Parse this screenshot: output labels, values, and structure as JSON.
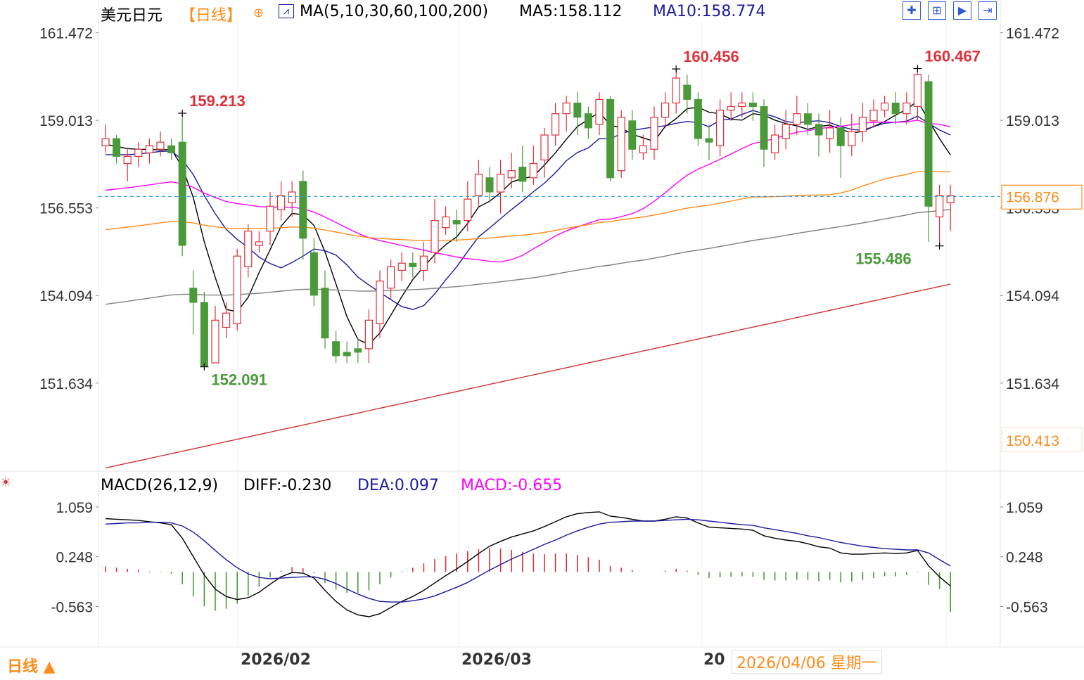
{
  "header": {
    "symbol": "美元日元",
    "period_tag": "【日线】",
    "ma_label": "MA(5,10,30,60,100,200)",
    "ma5_label": "MA5:158.112",
    "ma10_label": "MA10:158.774",
    "macd_label": "MACD(26,12,9)",
    "diff_label": "DIFF:-0.230",
    "dea_label": "DEA:0.097",
    "macd_value_label": "MACD:-0.655"
  },
  "footer": {
    "period_button": "日线 ▲",
    "dates": [
      "2026/02",
      "2026/03",
      "20"
    ],
    "crosshair_date": "2026/04/06 星期一"
  },
  "colors": {
    "up": "#e0303a",
    "down": "#4a9a3a",
    "ma5": "#000000",
    "ma10": "#1a1aa0",
    "ma30": "#ff00ff",
    "ma60": "#ff8c1a",
    "ma100": "#808080",
    "ma200": "#d03030",
    "accent": "#ff8c1a",
    "current_line": "#2a9adf"
  },
  "chart_data": [
    {
      "type": "candlestick",
      "title": "美元日元 日线",
      "ylim": [
        149.2,
        161.8
      ],
      "yticks": [
        "161.472",
        "159.013",
        "156.553",
        "154.094",
        "151.634"
      ],
      "current_price": "156.876",
      "ma200_label": "150.413",
      "annotations": [
        {
          "text": "159.213",
          "kind": "high"
        },
        {
          "text": "152.091",
          "kind": "low"
        },
        {
          "text": "160.456",
          "kind": "high"
        },
        {
          "text": "160.467",
          "kind": "high"
        },
        {
          "text": "155.486",
          "kind": "low"
        }
      ],
      "candles": [
        [
          158.3,
          158.5,
          158.1,
          158.9
        ],
        [
          158.5,
          158.0,
          157.8,
          158.6
        ],
        [
          157.8,
          158.0,
          157.3,
          158.2
        ],
        [
          158.0,
          158.2,
          157.7,
          158.4
        ],
        [
          158.1,
          158.3,
          157.8,
          158.5
        ],
        [
          158.2,
          158.4,
          158.0,
          158.7
        ],
        [
          158.3,
          158.1,
          157.9,
          158.5
        ],
        [
          158.4,
          155.5,
          155.2,
          159.213
        ],
        [
          154.3,
          153.9,
          153.0,
          154.8
        ],
        [
          153.9,
          152.1,
          152.091,
          154.2
        ],
        [
          152.2,
          153.4,
          152.2,
          153.8
        ],
        [
          153.2,
          153.6,
          152.9,
          153.9
        ],
        [
          153.3,
          155.2,
          153.1,
          155.4
        ],
        [
          154.9,
          155.9,
          154.6,
          156.1
        ],
        [
          155.5,
          155.6,
          155.3,
          155.9
        ],
        [
          155.9,
          156.6,
          155.5,
          157.0
        ],
        [
          156.5,
          156.9,
          156.2,
          157.3
        ],
        [
          156.7,
          157.0,
          156.3,
          157.3
        ],
        [
          157.3,
          155.7,
          155.1,
          157.6
        ],
        [
          155.3,
          154.1,
          153.8,
          155.7
        ],
        [
          154.3,
          152.9,
          152.6,
          154.8
        ],
        [
          152.8,
          152.4,
          152.2,
          153.1
        ],
        [
          152.5,
          152.4,
          152.2,
          152.8
        ],
        [
          152.6,
          152.5,
          152.2,
          152.9
        ],
        [
          152.6,
          153.4,
          152.2,
          153.7
        ],
        [
          153.3,
          154.5,
          152.9,
          154.8
        ],
        [
          154.3,
          154.9,
          154.0,
          155.1
        ],
        [
          154.8,
          155.0,
          154.5,
          155.3
        ],
        [
          155.0,
          154.9,
          154.6,
          155.3
        ],
        [
          154.8,
          155.2,
          154.5,
          155.6
        ],
        [
          155.3,
          156.2,
          155.0,
          156.8
        ],
        [
          156.0,
          156.3,
          155.8,
          156.6
        ],
        [
          156.2,
          156.1,
          155.6,
          156.5
        ],
        [
          156.2,
          156.8,
          155.9,
          157.3
        ],
        [
          156.9,
          157.5,
          156.6,
          157.9
        ],
        [
          157.4,
          157.0,
          156.7,
          157.7
        ],
        [
          157.0,
          157.5,
          156.4,
          157.9
        ],
        [
          157.4,
          157.6,
          157.1,
          158.1
        ],
        [
          157.7,
          157.3,
          157.0,
          158.3
        ],
        [
          157.4,
          157.8,
          157.2,
          158.3
        ],
        [
          157.9,
          158.6,
          157.4,
          158.8
        ],
        [
          158.6,
          159.2,
          158.3,
          159.5
        ],
        [
          159.2,
          159.5,
          158.7,
          159.7
        ],
        [
          159.5,
          159.1,
          158.6,
          159.8
        ],
        [
          159.2,
          158.8,
          158.5,
          159.4
        ],
        [
          158.9,
          159.6,
          158.6,
          159.8
        ],
        [
          159.6,
          157.4,
          157.3,
          159.7
        ],
        [
          157.6,
          159.1,
          157.4,
          159.3
        ],
        [
          159.0,
          158.2,
          157.9,
          159.3
        ],
        [
          158.1,
          158.3,
          157.9,
          158.6
        ],
        [
          158.2,
          159.1,
          157.9,
          159.4
        ],
        [
          159.1,
          159.5,
          158.8,
          159.8
        ],
        [
          159.5,
          160.2,
          159.2,
          160.456
        ],
        [
          160.0,
          159.6,
          159.2,
          160.3
        ],
        [
          159.6,
          158.5,
          158.3,
          159.8
        ],
        [
          158.5,
          158.4,
          157.9,
          158.9
        ],
        [
          158.3,
          159.3,
          158.0,
          159.6
        ],
        [
          159.3,
          159.4,
          159.0,
          159.8
        ],
        [
          159.4,
          159.5,
          159.1,
          159.8
        ],
        [
          159.5,
          159.4,
          159.0,
          159.8
        ],
        [
          159.4,
          158.2,
          157.7,
          159.6
        ],
        [
          158.1,
          158.6,
          157.9,
          158.9
        ],
        [
          158.5,
          158.9,
          158.2,
          159.3
        ],
        [
          158.9,
          159.2,
          158.6,
          159.7
        ],
        [
          159.2,
          158.9,
          158.6,
          159.5
        ],
        [
          158.9,
          158.6,
          158.0,
          159.2
        ],
        [
          158.5,
          158.8,
          158.1,
          159.3
        ],
        [
          158.8,
          158.3,
          157.4,
          159.1
        ],
        [
          158.3,
          158.7,
          158.0,
          159.2
        ],
        [
          158.7,
          159.1,
          158.4,
          159.5
        ],
        [
          159.0,
          159.3,
          158.8,
          159.6
        ],
        [
          159.3,
          159.5,
          159.1,
          159.7
        ],
        [
          159.5,
          159.2,
          158.9,
          159.8
        ],
        [
          159.2,
          159.5,
          158.9,
          159.8
        ],
        [
          159.4,
          160.3,
          159.0,
          160.467
        ],
        [
          160.1,
          156.6,
          155.6,
          160.3
        ],
        [
          156.3,
          156.9,
          155.486,
          157.2
        ],
        [
          156.7,
          156.9,
          155.9,
          157.2
        ]
      ],
      "ma_values": [
        {
          "name": "MA5",
          "label": "MA5:158.112"
        },
        {
          "name": "MA10",
          "label": "MA10:158.774"
        }
      ]
    },
    {
      "type": "macd",
      "title": "MACD(26,12,9)",
      "yticks": [
        "1.059",
        "0.248",
        "-0.563"
      ],
      "ylim": [
        -1.2,
        1.3
      ],
      "diff": [
        0.87,
        0.86,
        0.85,
        0.84,
        0.82,
        0.8,
        0.77,
        0.55,
        0.25,
        -0.05,
        -0.28,
        -0.4,
        -0.45,
        -0.42,
        -0.33,
        -0.2,
        -0.08,
        -0.01,
        -0.02,
        -0.1,
        -0.3,
        -0.48,
        -0.62,
        -0.7,
        -0.73,
        -0.68,
        -0.58,
        -0.48,
        -0.4,
        -0.3,
        -0.18,
        -0.06,
        0.05,
        0.17,
        0.3,
        0.42,
        0.5,
        0.57,
        0.62,
        0.67,
        0.74,
        0.82,
        0.9,
        0.95,
        0.97,
        0.98,
        0.91,
        0.89,
        0.86,
        0.83,
        0.83,
        0.86,
        0.9,
        0.88,
        0.8,
        0.73,
        0.72,
        0.71,
        0.7,
        0.68,
        0.59,
        0.55,
        0.52,
        0.5,
        0.46,
        0.41,
        0.39,
        0.31,
        0.29,
        0.29,
        0.3,
        0.31,
        0.3,
        0.31,
        0.35,
        0.1,
        -0.08,
        -0.23
      ],
      "dea": [
        0.78,
        0.79,
        0.8,
        0.8,
        0.81,
        0.81,
        0.8,
        0.75,
        0.65,
        0.51,
        0.35,
        0.2,
        0.07,
        -0.03,
        -0.09,
        -0.11,
        -0.1,
        -0.09,
        -0.08,
        -0.08,
        -0.12,
        -0.19,
        -0.28,
        -0.36,
        -0.43,
        -0.48,
        -0.49,
        -0.49,
        -0.47,
        -0.44,
        -0.39,
        -0.32,
        -0.25,
        -0.17,
        -0.07,
        0.03,
        0.12,
        0.21,
        0.29,
        0.37,
        0.45,
        0.52,
        0.6,
        0.67,
        0.73,
        0.78,
        0.81,
        0.82,
        0.83,
        0.83,
        0.83,
        0.84,
        0.85,
        0.86,
        0.85,
        0.83,
        0.81,
        0.79,
        0.77,
        0.76,
        0.72,
        0.69,
        0.66,
        0.63,
        0.59,
        0.56,
        0.52,
        0.48,
        0.45,
        0.42,
        0.4,
        0.38,
        0.37,
        0.36,
        0.36,
        0.31,
        0.2,
        0.097
      ],
      "histogram": [
        0.09,
        0.07,
        0.05,
        0.04,
        0.01,
        -0.01,
        -0.03,
        -0.2,
        -0.4,
        -0.56,
        -0.63,
        -0.6,
        -0.52,
        -0.39,
        -0.24,
        -0.09,
        0.02,
        0.08,
        0.06,
        -0.02,
        -0.18,
        -0.29,
        -0.34,
        -0.34,
        -0.3,
        -0.2,
        -0.09,
        0.01,
        0.07,
        0.14,
        0.21,
        0.26,
        0.3,
        0.34,
        0.37,
        0.39,
        0.38,
        0.36,
        0.33,
        0.3,
        0.29,
        0.3,
        0.3,
        0.28,
        0.24,
        0.2,
        0.1,
        0.07,
        0.03,
        0.0,
        0.0,
        0.02,
        0.05,
        0.02,
        -0.05,
        -0.1,
        -0.09,
        -0.08,
        -0.07,
        -0.08,
        -0.13,
        -0.14,
        -0.14,
        -0.13,
        -0.13,
        -0.15,
        -0.13,
        -0.17,
        -0.16,
        -0.13,
        -0.1,
        -0.07,
        -0.07,
        -0.05,
        -0.01,
        -0.21,
        -0.28,
        -0.655
      ]
    }
  ]
}
